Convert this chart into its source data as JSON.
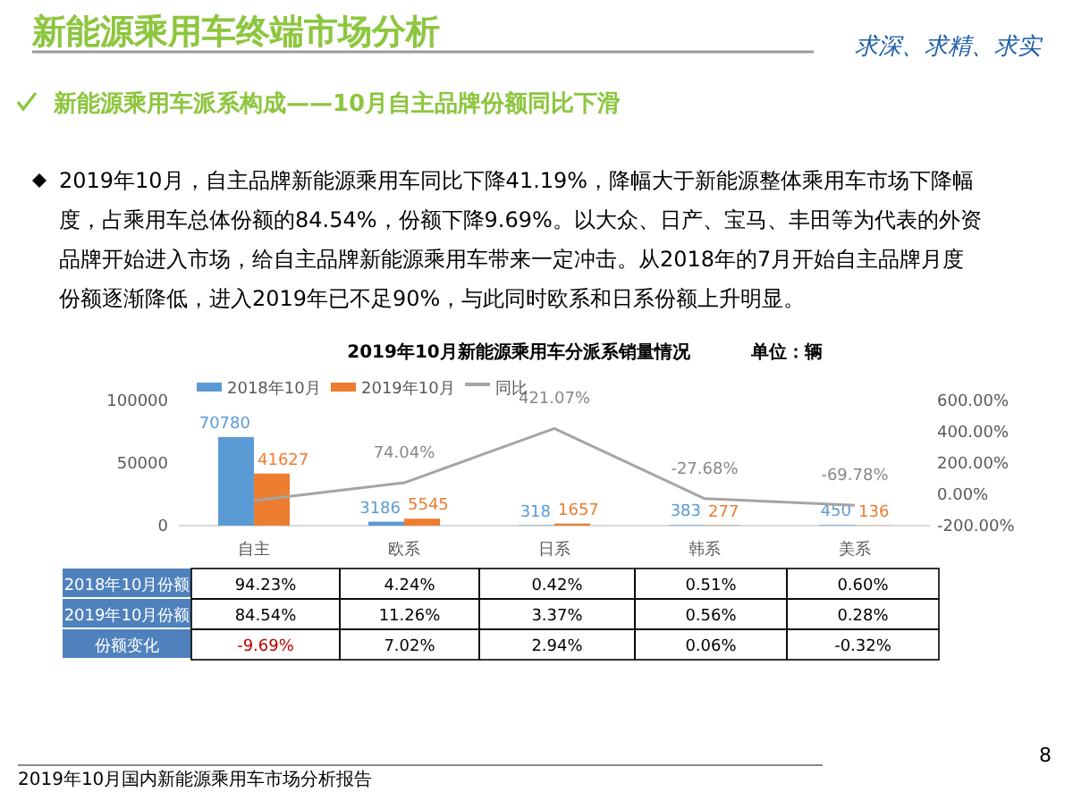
{
  "chart_data": [
    {
      "type": "bar",
      "title": "2019年10月新能源乘用车分派系销量情况",
      "annotations": [
        "新能源乘用车终端市场分析",
        "求深、求精、求实",
        "新能源乘用车派系构成——10月自主品牌份额同比下滑",
        "2019年10月，自主品牌新能源乘用车同比下降41.19%，降幅大于新能源整体乘用车市场下降幅度，占乘用车总体份额的84.54%，份额下降9.69%。以大众、日产、宝马、丰田等为代表的外资品牌开始进入市场，给自主品牌新能源乘用车带来一定冲击。从2018年的7月开始自主品牌月度份额逐渐降低，进入2019年已不足90%，与此同时欧系和日系份额上升明显。",
        "单位：辆",
        "2019年10月国内新能源乘用车市场分析报告",
        "8"
      ],
      "categories": [
        "自主",
        "欧系",
        "日系",
        "韩系",
        "美系"
      ],
      "series": [
        {
          "name": "2018年10月",
          "color": "#5b9bd5",
          "values": [
            70780,
            3186,
            318,
            383,
            450
          ]
        },
        {
          "name": "2019年10月",
          "color": "#ed7d31",
          "values": [
            41627,
            5545,
            1657,
            277,
            136
          ]
        },
        {
          "name": "同比",
          "type": "line",
          "axis": "y2",
          "color": "#a5a5a5",
          "values": [
            -40,
            74.04,
            421.07,
            -27.68,
            -69.78
          ],
          "value_labels": [
            null,
            "74.04%",
            "421.07%",
            "-27.68%",
            "-69.78%"
          ]
        }
      ],
      "data_labels": true,
      "ylim": [
        0,
        100000
      ],
      "yticks": [
        0,
        50000,
        100000
      ],
      "y2lim": [
        -200,
        600
      ],
      "y2ticks": [
        {
          "value": -200,
          "label": "-200.00%"
        },
        {
          "value": 0,
          "label": "0.00%"
        },
        {
          "value": 200,
          "label": "200.00%"
        },
        {
          "value": 400,
          "label": "400.00%"
        },
        {
          "value": 600,
          "label": "600.00%"
        }
      ],
      "legend": "top",
      "grid": false,
      "marker": "none"
    },
    {
      "type": "other",
      "categories": [
        null,
        null,
        null,
        null,
        null
      ],
      "y_categories": [
        "2018年10月份额",
        "2019年10月份额",
        "份额变化"
      ],
      "cell_labels": [
        [
          "94.23%",
          "4.24%",
          "0.42%",
          "0.51%",
          "0.60%"
        ],
        [
          "84.54%",
          "11.26%",
          "3.37%",
          "0.56%",
          "0.28%"
        ],
        [
          "-9.69%",
          "7.02%",
          "2.94%",
          "0.06%",
          "-0.32%"
        ]
      ]
    }
  ]
}
